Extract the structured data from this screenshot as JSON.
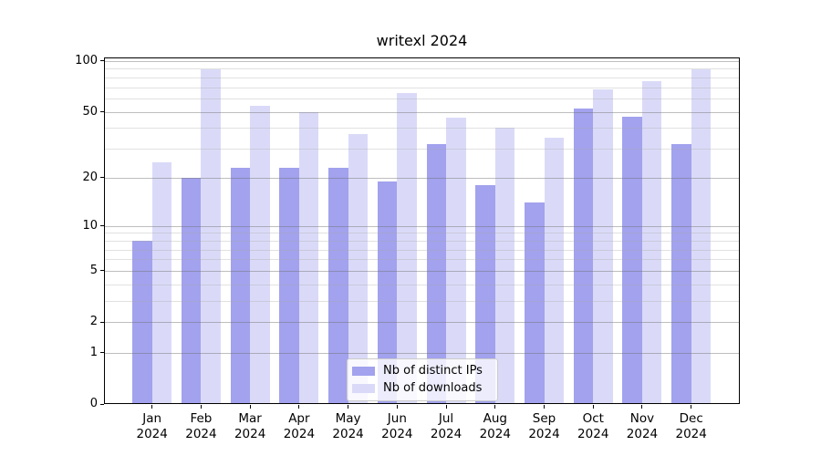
{
  "title": "writexl 2024",
  "colors": {
    "distinct_ips": "#a2a2ee",
    "downloads": "#dadaf8",
    "grid_major": "rgba(110,110,110,0.45)",
    "grid_minor": "rgba(170,170,170,0.35)",
    "spine": "#000000",
    "legend_border": "#cccccc",
    "legend_background": "rgba(255,255,255,0.8)",
    "text": "#000000"
  },
  "legend": {
    "items": [
      {
        "label": "Nb of distinct IPs",
        "color_key": "distinct_ips"
      },
      {
        "label": "Nb of downloads",
        "color_key": "downloads"
      }
    ]
  },
  "chart_data": {
    "type": "bar",
    "title": "writexl 2024",
    "categories": [
      "Jan",
      "Feb",
      "Mar",
      "Apr",
      "May",
      "Jun",
      "Jul",
      "Aug",
      "Sep",
      "Oct",
      "Nov",
      "Dec"
    ],
    "x_tick_year": "2024",
    "series": [
      {
        "name": "Nb of distinct IPs",
        "color_key": "distinct_ips",
        "values": [
          8,
          20,
          23,
          23,
          23,
          19,
          32,
          18,
          14,
          52,
          47,
          32
        ]
      },
      {
        "name": "Nb of downloads",
        "color_key": "downloads",
        "values": [
          25,
          89,
          54,
          50,
          37,
          65,
          46,
          40,
          35,
          68,
          76,
          89
        ]
      }
    ],
    "xlabel": "",
    "ylabel": "",
    "yscale": "log1p",
    "ylim": [
      0,
      105
    ],
    "y_major_ticks": [
      0,
      1,
      2,
      5,
      10,
      20,
      50,
      100
    ],
    "y_minor_ticks": [
      3,
      4,
      6,
      7,
      8,
      9,
      30,
      40,
      60,
      70,
      80,
      90
    ],
    "grid": true,
    "grid_above_bars": true,
    "legend_position": "lower center"
  }
}
